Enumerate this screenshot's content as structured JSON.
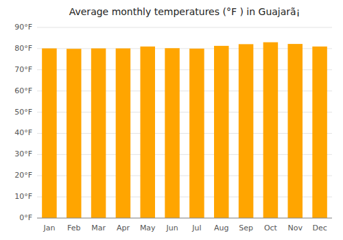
{
  "chart_data": {
    "type": "bar",
    "title": "Average monthly temperatures (°F ) in Guajarã¡",
    "categories": [
      "Jan",
      "Feb",
      "Mar",
      "Apr",
      "May",
      "Jun",
      "Jul",
      "Aug",
      "Sep",
      "Oct",
      "Nov",
      "Dec"
    ],
    "values": [
      80.1,
      79.9,
      80.1,
      80.1,
      81.0,
      80.2,
      80.0,
      81.3,
      82.1,
      83.0,
      82.2,
      81.0
    ],
    "color": "#FFA500",
    "ylim": [
      0,
      90
    ],
    "yticks": [
      {
        "value": 0,
        "label": "0°F"
      },
      {
        "value": 10,
        "label": "10°F"
      },
      {
        "value": 20,
        "label": "20°F"
      },
      {
        "value": 30,
        "label": "30°F"
      },
      {
        "value": 40,
        "label": "40°F"
      },
      {
        "value": 50,
        "label": "50°F"
      },
      {
        "value": 60,
        "label": "60°F"
      },
      {
        "value": 70,
        "label": "70°F"
      },
      {
        "value": 80,
        "label": "80°F"
      },
      {
        "value": 90,
        "label": "90°F"
      }
    ],
    "grid": true
  }
}
